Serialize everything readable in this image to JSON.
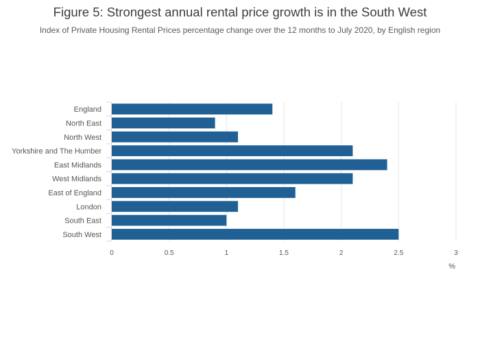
{
  "chart_data": {
    "type": "bar",
    "orientation": "horizontal",
    "title": "Figure 5: Strongest annual rental price growth is in the South West",
    "subtitle": "Index of Private Housing Rental Prices percentage change over the 12 months to July 2020, by English region",
    "categories": [
      "England",
      "North East",
      "North West",
      "Yorkshire and The Humber",
      "East Midlands",
      "West Midlands",
      "East of England",
      "London",
      "South East",
      "South West"
    ],
    "values": [
      1.4,
      0.9,
      1.1,
      2.1,
      2.4,
      2.1,
      1.6,
      1.1,
      1.0,
      2.5
    ],
    "xlim": [
      0,
      3
    ],
    "xticks": [
      "0",
      "0.5",
      "1",
      "1.5",
      "2",
      "2.5",
      "3"
    ],
    "xlabel": "%",
    "bar_color": "#206095",
    "grid": true,
    "legend": "none"
  }
}
